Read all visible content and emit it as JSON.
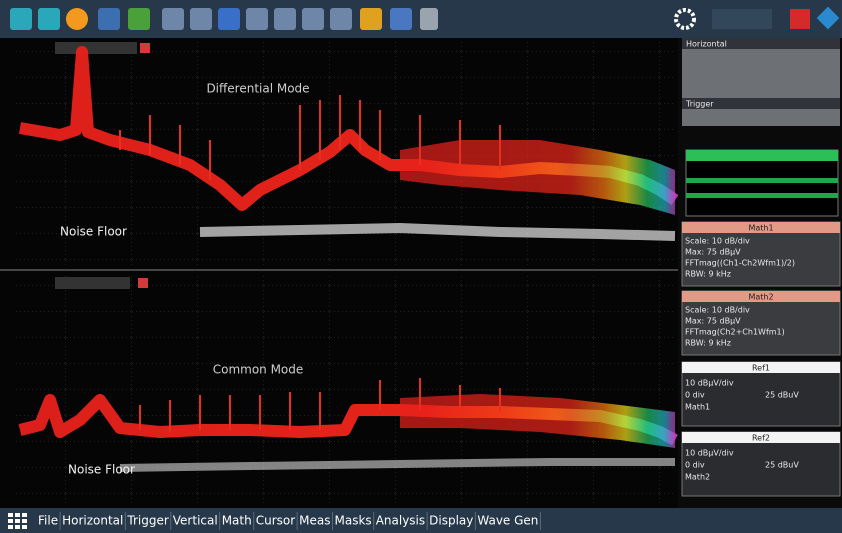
{
  "panes": [
    {
      "label": "Differential Mode",
      "noise_label": "Noise Floor"
    },
    {
      "label": "Common Mode",
      "noise_label": "Noise Floor"
    }
  ],
  "side_panel": {
    "horizontal": {
      "title": "Horizontal"
    },
    "trigger": {
      "title": "Trigger"
    },
    "math": [
      {
        "title": "Math1",
        "lines": [
          "Scale: 10 dB/div",
          "Max: 75 dBµV",
          "FFTmag((Ch1-Ch2Wfm1)/2)",
          "RBW: 9 kHz"
        ]
      },
      {
        "title": "Math2",
        "lines": [
          "Scale: 10 dB/div",
          "Max: 75 dBµV",
          "FFTmag(Ch2+Ch1Wfm1)",
          "RBW: 9 kHz"
        ]
      }
    ],
    "refs": [
      {
        "title": "Ref1",
        "scale": "10 dBµV/div",
        "offset": "0 div",
        "level": "25 dBuV",
        "source": "Math1"
      },
      {
        "title": "Ref2",
        "scale": "10 dBµV/div",
        "offset": "0 div",
        "level": "25 dBuV",
        "source": "Math2"
      }
    ]
  },
  "menu": [
    "File",
    "Horizontal",
    "Trigger",
    "Vertical",
    "Math",
    "Cursor",
    "Meas",
    "Masks",
    "Analysis",
    "Display",
    "Wave Gen"
  ]
}
